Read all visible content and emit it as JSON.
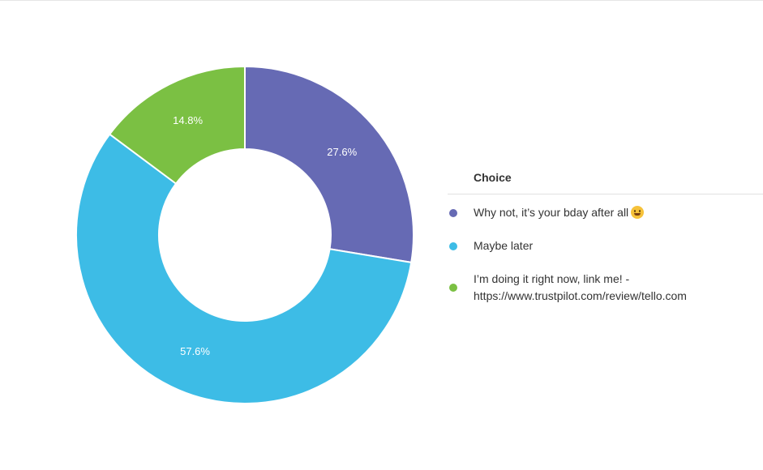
{
  "chart_data": {
    "type": "pie",
    "donut": true,
    "categories": [
      "Why not, it’s your bday after all",
      "Maybe later",
      "I’m doing it right now, link me! - https://www.trustpilot.com/review/tello.com"
    ],
    "values": [
      27.6,
      57.6,
      14.8
    ],
    "value_labels": [
      "27.6%",
      "57.6%",
      "14.8%"
    ],
    "colors": [
      "#666ab4",
      "#3dbce6",
      "#7bc043"
    ],
    "legend_title": "Choice",
    "legend_position": "right"
  },
  "legend": {
    "title": "Choice",
    "items": [
      {
        "label": "Why not, it’s your bday after all",
        "emoji": "grinning-face-icon",
        "color": "#666ab4"
      },
      {
        "label": "Maybe later",
        "color": "#3dbce6"
      },
      {
        "label_line1": "I’m doing it right now, link me! -",
        "label_line2": "https://www.trustpilot.com/review/tello.com",
        "color": "#7bc043"
      }
    ]
  }
}
